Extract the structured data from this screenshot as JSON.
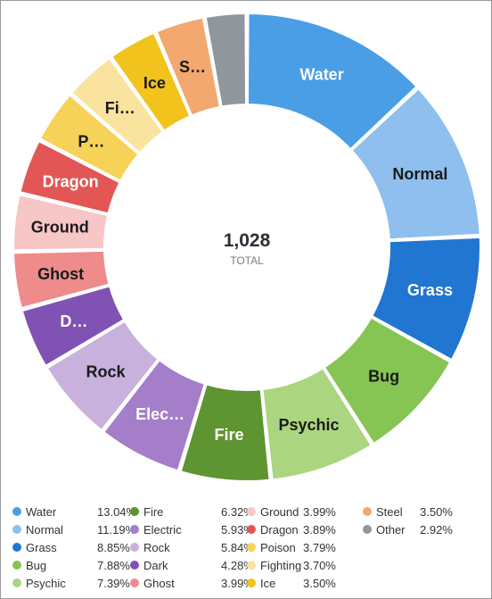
{
  "chart_data": {
    "type": "pie",
    "donut": true,
    "center_value": "1,028",
    "center_label": "TOTAL",
    "slices": [
      {
        "name": "Water",
        "label": "Water",
        "percent": 13.04,
        "percent_text": "13.04%",
        "color": "#4a9ee6",
        "label_color": "#ffffff"
      },
      {
        "name": "Normal",
        "label": "Normal",
        "percent": 11.19,
        "percent_text": "11.19%",
        "color": "#8fbfee",
        "label_color": "#1a1a1a"
      },
      {
        "name": "Grass",
        "label": "Grass",
        "percent": 8.85,
        "percent_text": "8.85%",
        "color": "#2176d2",
        "label_color": "#ffffff"
      },
      {
        "name": "Bug",
        "label": "Bug",
        "percent": 7.88,
        "percent_text": "7.88%",
        "color": "#86c454",
        "label_color": "#1a1a1a"
      },
      {
        "name": "Psychic",
        "label": "Psychic",
        "percent": 7.39,
        "percent_text": "7.39%",
        "color": "#abd67f",
        "label_color": "#1a1a1a"
      },
      {
        "name": "Fire",
        "label": "Fire",
        "percent": 6.32,
        "percent_text": "6.32%",
        "color": "#5e9432",
        "label_color": "#ffffff"
      },
      {
        "name": "Electric",
        "label": "Elec…",
        "percent": 5.93,
        "percent_text": "5.93%",
        "color": "#a47ec8",
        "label_color": "#ffffff"
      },
      {
        "name": "Rock",
        "label": "Rock",
        "percent": 5.84,
        "percent_text": "5.84%",
        "color": "#c8b1dd",
        "label_color": "#1a1a1a"
      },
      {
        "name": "Dark",
        "label": "D…",
        "percent": 4.28,
        "percent_text": "4.28%",
        "color": "#8052b3",
        "label_color": "#ffffff"
      },
      {
        "name": "Ghost",
        "label": "Ghost",
        "percent": 3.99,
        "percent_text": "3.99%",
        "color": "#ee8b8b",
        "label_color": "#1a1a1a"
      },
      {
        "name": "Ground",
        "label": "Ground",
        "percent": 3.99,
        "percent_text": "3.99%",
        "color": "#f7c6c6",
        "label_color": "#1a1a1a"
      },
      {
        "name": "Dragon",
        "label": "Dragon",
        "percent": 3.89,
        "percent_text": "3.89%",
        "color": "#e25656",
        "label_color": "#ffffff"
      },
      {
        "name": "Poison",
        "label": "P…",
        "percent": 3.79,
        "percent_text": "3.79%",
        "color": "#f6d258",
        "label_color": "#1a1a1a"
      },
      {
        "name": "Fighting",
        "label": "Fi…",
        "percent": 3.7,
        "percent_text": "3.70%",
        "color": "#fae39e",
        "label_color": "#1a1a1a"
      },
      {
        "name": "Ice",
        "label": "Ice",
        "percent": 3.5,
        "percent_text": "3.50%",
        "color": "#f2c21d",
        "label_color": "#1a1a1a"
      },
      {
        "name": "Steel",
        "label": "S…",
        "percent": 3.5,
        "percent_text": "3.50%",
        "color": "#f2a86e",
        "label_color": "#1a1a1a"
      },
      {
        "name": "Other",
        "label": "",
        "percent": 2.92,
        "percent_text": "2.92%",
        "color": "#8f979d",
        "label_color": "#ffffff"
      }
    ],
    "legend_order": [
      "Water",
      "Normal",
      "Grass",
      "Bug",
      "Psychic",
      "Fire",
      "Electric",
      "Rock",
      "Dark",
      "Ghost",
      "Ground",
      "Dragon",
      "Poison",
      "Fighting",
      "Ice",
      "Steel",
      "Other"
    ],
    "legend_placement": "bottom"
  }
}
